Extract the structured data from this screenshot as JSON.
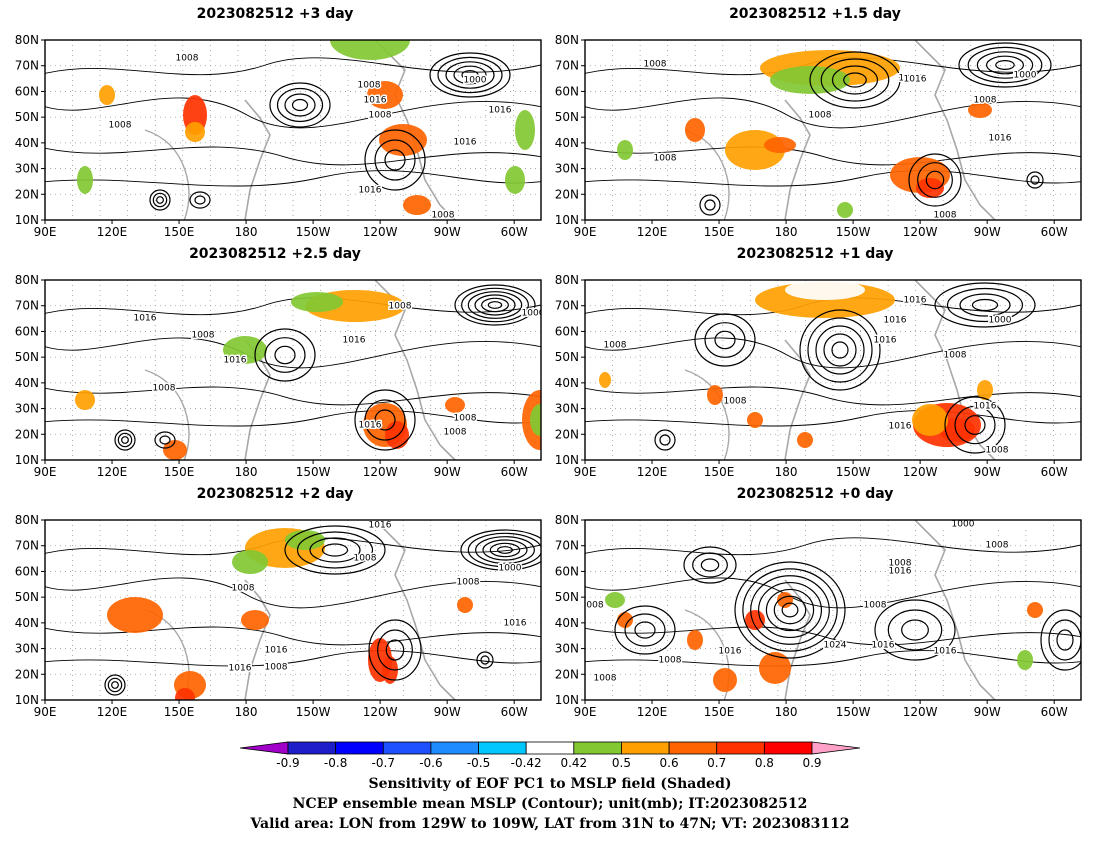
{
  "panels": [
    {
      "title": "2023082512  +3 day",
      "isobars": [
        "1008",
        "1008",
        "1016",
        "1016",
        "1008",
        "1000",
        "1016",
        "1016",
        "1008",
        "1008"
      ]
    },
    {
      "title": "2023082512  +1.5 day",
      "isobars": [
        "1008",
        "1016",
        "1008",
        "1008",
        "1000",
        "1016",
        "1016",
        "1008",
        "1008"
      ]
    },
    {
      "title": "2023082512  +2.5 day",
      "isobars": [
        "1016",
        "1008",
        "1016",
        "1008",
        "1000",
        "1016",
        "1008",
        "1016",
        "1008",
        "1008"
      ]
    },
    {
      "title": "2023082512  +1 day",
      "isobars": [
        "1008",
        "1016",
        "1016",
        "1008",
        "1000",
        "1016",
        "1008",
        "1008",
        "1016",
        "1016"
      ]
    },
    {
      "title": "2023082512  +2 day",
      "isobars": [
        "1016",
        "1008",
        "1008",
        "1008",
        "1000",
        "1016",
        "1016",
        "1008",
        "1016",
        "1016"
      ]
    },
    {
      "title": "2023082512  +0 day",
      "isobars": [
        "1000",
        "1008",
        "1008",
        "1016",
        "1008",
        "1016",
        "1016",
        "1024",
        "1016",
        "1008",
        "1016",
        "008",
        "1008"
      ]
    }
  ],
  "chart_data": {
    "type": "heatmap",
    "map_type": "contour and shaded field map",
    "x_ticks": [
      "90E",
      "120E",
      "150E",
      "180",
      "150W",
      "120W",
      "90W",
      "60W"
    ],
    "y_ticks": [
      "10N",
      "20N",
      "30N",
      "40N",
      "50N",
      "60N",
      "70N",
      "80N"
    ],
    "colorbar": {
      "labels": [
        "-0.9",
        "-0.8",
        "-0.7",
        "-0.6",
        "-0.5",
        "-0.42",
        "0.42",
        "0.5",
        "0.6",
        "0.7",
        "0.8",
        "0.9"
      ],
      "colors": [
        "#a000c8",
        "#1e1ec8",
        "#0000ff",
        "#1e50ff",
        "#1e8cff",
        "#00c8ff",
        "#ffffff",
        "#82c832",
        "#ffa000",
        "#ff6400",
        "#ff3200",
        "#ff0000",
        "#ffa0c8"
      ]
    },
    "caption": [
      "Sensitivity of EOF PC1 to MSLP field (Shaded)",
      "NCEP ensemble mean MSLP (Contour); unit(mb); IT:2023082512",
      "Valid area: LON from 129W to 109W, LAT from 31N to 47N; VT: 2023083112"
    ]
  }
}
